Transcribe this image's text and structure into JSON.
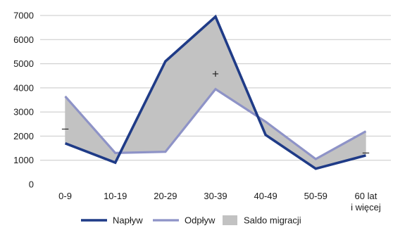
{
  "chart_data": {
    "type": "area",
    "categories": [
      "0-9",
      "10-19",
      "20-29",
      "30-39",
      "40-49",
      "50-59",
      "60 lat\ni więcej"
    ],
    "ylim": [
      0,
      7000
    ],
    "yticks": [
      0,
      1000,
      2000,
      3000,
      4000,
      5000,
      6000,
      7000
    ],
    "grid": true,
    "series": [
      {
        "name": "Napływ",
        "values": [
          1700,
          900,
          5100,
          6950,
          2050,
          650,
          1200
        ],
        "color": "#1f3b87"
      },
      {
        "name": "Odpływ",
        "values": [
          3650,
          1300,
          1350,
          3950,
          2600,
          1050,
          2200
        ],
        "color": "#8e93c7"
      }
    ],
    "fill": {
      "name": "Saldo migracji",
      "color": "#c2c2c2"
    },
    "annotations": [
      {
        "text": "–",
        "x": "0-9",
        "y": 2350
      },
      {
        "text": "+",
        "x": "30-39",
        "y": 4600
      },
      {
        "text": "–",
        "x": "60 lat\ni więcej",
        "y": 1350
      }
    ],
    "legend": {
      "placement": "bottom"
    }
  }
}
